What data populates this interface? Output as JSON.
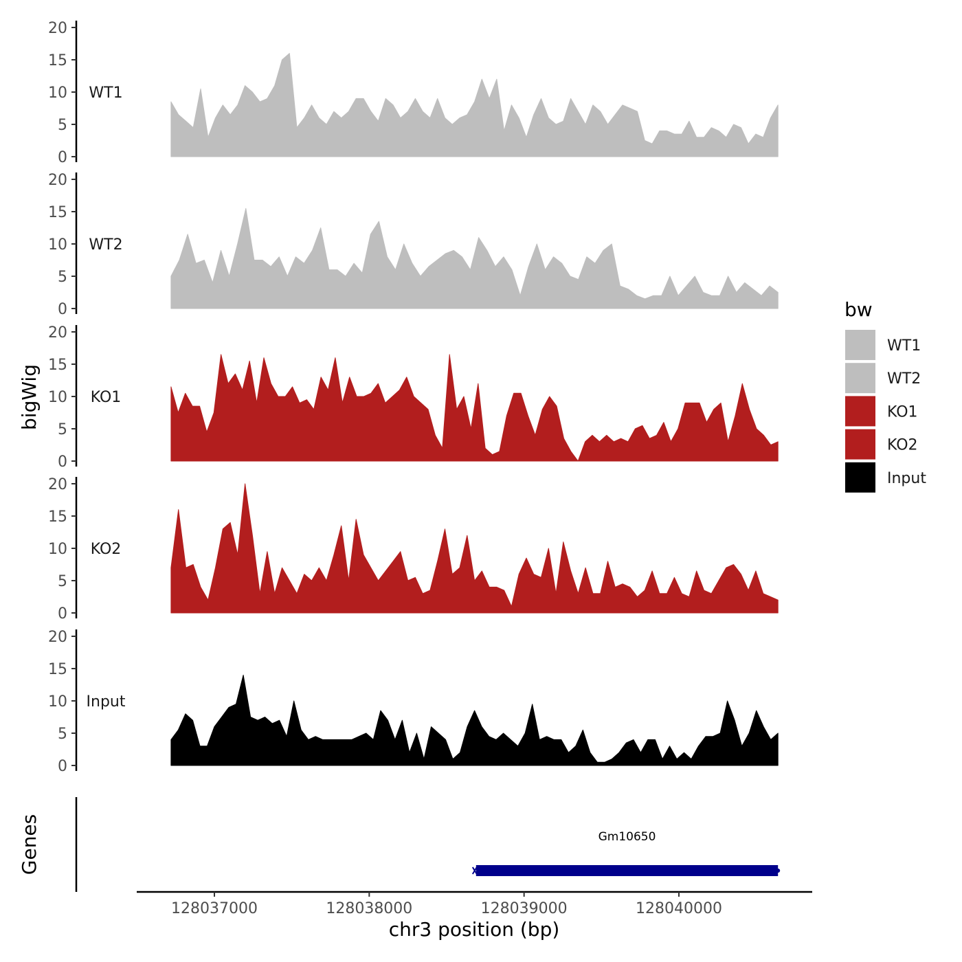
{
  "chart_data": {
    "type": "area",
    "title": "",
    "ylabel": "bigWig",
    "genes_label": "Genes",
    "xlabel": "chr3 position (bp)",
    "xlim": [
      128036450,
      128040850
    ],
    "x_ticks": [
      128037000,
      128038000,
      128039000,
      128040000
    ],
    "x_tick_labels": [
      "128037000",
      "128038000",
      "128039000",
      "128040000"
    ],
    "track_x_range": [
      128036720,
      128040640
    ],
    "ylim": [
      0,
      20
    ],
    "y_ticks": [
      0,
      5,
      10,
      15,
      20
    ],
    "y_tick_labels": [
      "0",
      "5",
      "10",
      "15",
      "20"
    ],
    "legend": {
      "title": "bw",
      "entries": [
        {
          "label": "WT1",
          "color": "#BEBEBE"
        },
        {
          "label": "WT2",
          "color": "#BEBEBE"
        },
        {
          "label": "KO1",
          "color": "#B21E1E"
        },
        {
          "label": "KO2",
          "color": "#B21E1E"
        },
        {
          "label": "Input",
          "color": "#000000"
        }
      ]
    },
    "series": [
      {
        "name": "WT1",
        "color": "#BEBEBE",
        "values": [
          8.5,
          6.5,
          5.5,
          4.5,
          10.5,
          3,
          6,
          8,
          6.5,
          8,
          11,
          10,
          8.5,
          9,
          11,
          15,
          16,
          4.5,
          6,
          8,
          6,
          5,
          7,
          6,
          7,
          9,
          9,
          7,
          5.5,
          9,
          8,
          6,
          7,
          9,
          7,
          6,
          9,
          6,
          5,
          6,
          6.5,
          8.5,
          12,
          9,
          12,
          4,
          8,
          6,
          3,
          6.5,
          9,
          6,
          5,
          5.5,
          9,
          7,
          5,
          8,
          7,
          5,
          6.5,
          8,
          7.5,
          7,
          2.5,
          2,
          4,
          4,
          3.5,
          3.5,
          5.5,
          3,
          3,
          4.5,
          4,
          3,
          5,
          4.5,
          2,
          3.5,
          3,
          6,
          8
        ]
      },
      {
        "name": "WT2",
        "color": "#BEBEBE",
        "values": [
          5,
          7.5,
          11.5,
          7,
          7.5,
          4,
          9,
          5,
          10,
          15.5,
          7.5,
          7.5,
          6.5,
          8,
          5,
          8,
          7,
          9,
          12.5,
          6,
          6,
          5,
          7,
          5.5,
          11.5,
          13.5,
          8,
          6,
          10,
          7,
          5,
          6.5,
          7.5,
          8.5,
          9,
          8,
          6,
          11,
          9,
          6.5,
          8,
          6,
          2,
          6.5,
          10,
          6,
          8,
          7,
          5,
          4.5,
          8,
          7,
          9,
          10,
          3.5,
          3,
          2,
          1.5,
          2,
          2,
          5,
          2,
          3.5,
          5,
          2.5,
          2,
          2,
          5,
          2.5,
          4,
          3,
          2,
          3.5,
          2.5
        ]
      },
      {
        "name": "KO1",
        "color": "#B21E1E",
        "values": [
          11.5,
          7.5,
          10.5,
          8.5,
          8.5,
          4.5,
          7.5,
          16.5,
          12,
          13.5,
          11,
          15.5,
          9,
          16,
          12,
          10,
          10,
          11.5,
          9,
          9.5,
          8,
          13,
          11,
          16,
          9,
          13,
          10,
          10,
          10.5,
          12,
          9,
          10,
          11,
          13,
          10,
          9,
          8,
          4,
          2,
          16.5,
          8,
          10,
          5,
          12,
          2,
          1,
          1.5,
          7,
          10.5,
          10.5,
          7,
          4,
          8,
          10,
          8.5,
          3.5,
          1.5,
          0,
          3,
          4,
          3,
          4,
          3,
          3.5,
          3,
          5,
          5.5,
          3.5,
          4,
          6,
          3,
          5,
          9,
          9,
          9,
          6,
          8,
          9,
          3,
          7,
          12,
          8,
          5,
          4,
          2.5,
          3
        ]
      },
      {
        "name": "KO2",
        "color": "#B21E1E",
        "values": [
          7,
          16,
          7,
          7.5,
          4,
          2,
          7,
          13,
          14,
          9,
          20,
          12,
          3,
          9.5,
          3,
          7,
          5,
          3,
          6,
          5,
          7,
          5,
          9,
          13.5,
          5,
          14.5,
          9,
          7,
          5,
          6.5,
          8,
          9.5,
          5,
          5.5,
          3,
          3.5,
          8,
          13,
          6,
          7,
          12,
          5,
          6.5,
          4,
          4,
          3.5,
          1,
          6,
          8.5,
          6,
          5.5,
          10,
          3,
          11,
          6.5,
          3,
          7,
          3,
          3,
          8,
          4,
          4.5,
          4,
          2.5,
          3.5,
          6.5,
          3,
          3,
          5.5,
          3,
          2.5,
          6.5,
          3.5,
          3,
          5,
          7,
          7.5,
          6,
          3.5,
          6.5,
          3,
          2.5,
          2
        ]
      },
      {
        "name": "Input",
        "color": "#000000",
        "values": [
          4,
          5.5,
          8,
          7,
          3,
          3,
          6,
          7.5,
          9,
          9.5,
          14,
          7.5,
          7,
          7.5,
          6.5,
          7,
          4.5,
          10,
          5.5,
          4,
          4.5,
          4,
          4,
          4,
          4,
          4,
          4.5,
          5,
          4,
          8.5,
          7,
          4,
          7,
          2,
          5,
          1,
          6,
          5,
          4,
          1,
          2,
          6,
          8.5,
          6,
          4.5,
          4,
          5,
          4,
          3,
          5,
          9.5,
          4,
          4.5,
          4,
          4,
          2,
          3,
          5.5,
          2,
          0.5,
          0.5,
          1,
          2,
          3.5,
          4,
          2,
          4,
          4,
          1,
          3,
          1,
          2,
          1,
          3,
          4.5,
          4.5,
          5,
          10,
          7,
          3,
          5,
          8.5,
          6,
          4,
          5
        ]
      }
    ],
    "genes": [
      {
        "name": "Gm10650",
        "start": 128038690,
        "end": 128040640,
        "color": "#00008B"
      }
    ]
  }
}
